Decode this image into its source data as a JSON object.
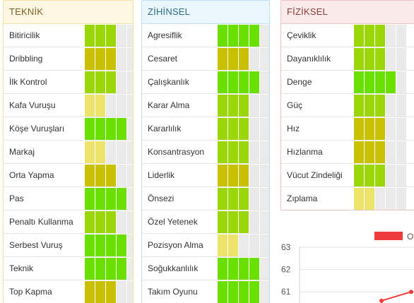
{
  "colors": {
    "bright_green": "#6be000",
    "green": "#9ad60a",
    "olive": "#c8c000",
    "light_yellow": "#ece36a",
    "empty": "#eaeaea",
    "chart_line": "#ef3b3b"
  },
  "teknik": {
    "title": "TEKNİK",
    "items": [
      {
        "label": "Bitiricilik",
        "level": 3,
        "color": "green"
      },
      {
        "label": "Dribbling",
        "level": 3,
        "color": "olive"
      },
      {
        "label": "İlk Kontrol",
        "level": 3,
        "color": "green"
      },
      {
        "label": "Kafa Vuruşu",
        "level": 2,
        "color": "light_yellow"
      },
      {
        "label": "Köşe Vuruşları",
        "level": 4,
        "color": "bright_green"
      },
      {
        "label": "Markaj",
        "level": 2,
        "color": "light_yellow"
      },
      {
        "label": "Orta Yapma",
        "level": 3,
        "color": "olive"
      },
      {
        "label": "Pas",
        "level": 4,
        "color": "bright_green"
      },
      {
        "label": "Penaltı Kullanma",
        "level": 3,
        "color": "green"
      },
      {
        "label": "Serbest Vuruş",
        "level": 4,
        "color": "bright_green"
      },
      {
        "label": "Teknik",
        "level": 4,
        "color": "bright_green"
      },
      {
        "label": "Top Kapma",
        "level": 3,
        "color": "olive"
      }
    ]
  },
  "zihinsel": {
    "title": "ZİHİNSEL",
    "items": [
      {
        "label": "Agresiflik",
        "level": 4,
        "color": "bright_green"
      },
      {
        "label": "Cesaret",
        "level": 3,
        "color": "olive"
      },
      {
        "label": "Çalışkanlık",
        "level": 4,
        "color": "bright_green"
      },
      {
        "label": "Karar Alma",
        "level": 3,
        "color": "green"
      },
      {
        "label": "Kararlılık",
        "level": 3,
        "color": "green"
      },
      {
        "label": "Konsantrasyon",
        "level": 3,
        "color": "green"
      },
      {
        "label": "Liderlik",
        "level": 3,
        "color": "olive"
      },
      {
        "label": "Önsezi",
        "level": 3,
        "color": "green"
      },
      {
        "label": "Özel Yetenek",
        "level": 3,
        "color": "green"
      },
      {
        "label": "Pozisyon Alma",
        "level": 2,
        "color": "light_yellow"
      },
      {
        "label": "Soğukkanlılık",
        "level": 4,
        "color": "bright_green"
      },
      {
        "label": "Takım Oyunu",
        "level": 4,
        "color": "bright_green"
      }
    ]
  },
  "fiziksel": {
    "title": "FİZİKSEL",
    "items": [
      {
        "label": "Çeviklik",
        "level": 3,
        "color": "green"
      },
      {
        "label": "Dayanıklılık",
        "level": 3,
        "color": "green"
      },
      {
        "label": "Denge",
        "level": 4,
        "color": "bright_green"
      },
      {
        "label": "Güç",
        "level": 3,
        "color": "green"
      },
      {
        "label": "Hız",
        "level": 3,
        "color": "olive"
      },
      {
        "label": "Hızlanma",
        "level": 3,
        "color": "olive"
      },
      {
        "label": "Vücut Zindeliği",
        "level": 3,
        "color": "green"
      },
      {
        "label": "Zıplama",
        "level": 2,
        "color": "light_yellow"
      }
    ]
  },
  "chart_data": {
    "type": "line",
    "title": "",
    "xlabel": "",
    "ylabel": "",
    "ylim": [
      60.5,
      63
    ],
    "yticks": [
      61,
      62,
      63
    ],
    "grid": true,
    "legend": {
      "position": "top-right",
      "entries": [
        {
          "label": "O",
          "color": "#ef3b3b"
        }
      ]
    },
    "series": [
      {
        "values": [
          60.6,
          61
        ]
      }
    ]
  }
}
